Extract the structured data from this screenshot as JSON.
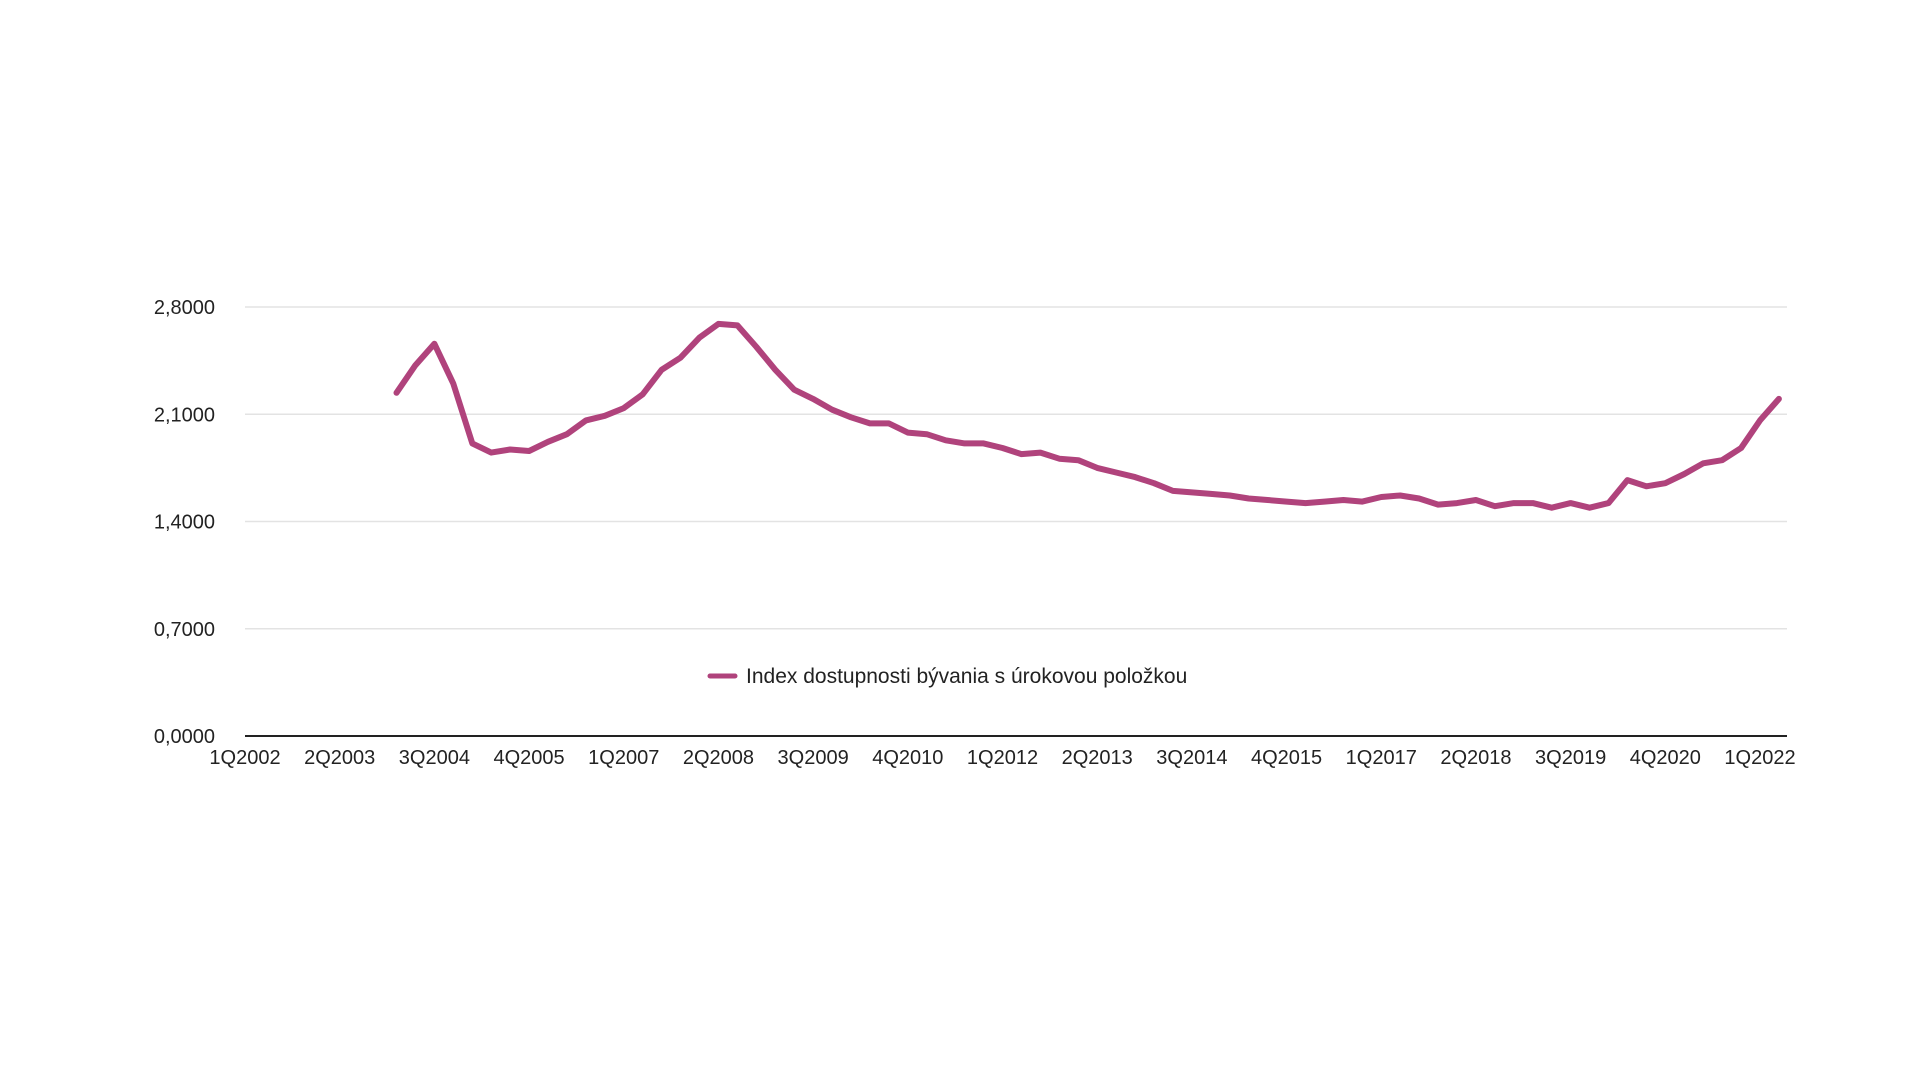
{
  "chart_data": {
    "type": "line",
    "title": "",
    "xlabel": "",
    "ylabel": "",
    "ylim": [
      0,
      2.8
    ],
    "y_ticks": [
      "0,0000",
      "0,7000",
      "1,4000",
      "2,1000",
      "2,8000"
    ],
    "y_tick_values": [
      0,
      0.7,
      1.4,
      2.1,
      2.8
    ],
    "x_tick_labels": [
      "1Q2002",
      "2Q2003",
      "3Q2004",
      "4Q2005",
      "1Q2007",
      "2Q2008",
      "3Q2009",
      "4Q2010",
      "1Q2012",
      "2Q2013",
      "3Q2014",
      "4Q2015",
      "1Q2017",
      "2Q2018",
      "3Q2019",
      "4Q2020",
      "1Q2022"
    ],
    "x_tick_positions": [
      0,
      5,
      10,
      15,
      20,
      25,
      30,
      35,
      40,
      45,
      50,
      55,
      60,
      65,
      70,
      75,
      80
    ],
    "x_count": 83,
    "grid": true,
    "legend_position": "bottom-center",
    "series": [
      {
        "name": "Index dostupnosti bývania s úrokovou položkou",
        "color": "#b0437c",
        "x_start": 8,
        "values": [
          2.24,
          2.42,
          2.56,
          2.3,
          1.91,
          1.85,
          1.87,
          1.86,
          1.92,
          1.97,
          2.06,
          2.09,
          2.14,
          2.23,
          2.39,
          2.47,
          2.6,
          2.69,
          2.68,
          2.54,
          2.39,
          2.26,
          2.2,
          2.13,
          2.08,
          2.04,
          2.04,
          1.98,
          1.97,
          1.93,
          1.91,
          1.91,
          1.88,
          1.84,
          1.85,
          1.81,
          1.8,
          1.75,
          1.72,
          1.69,
          1.65,
          1.6,
          1.59,
          1.58,
          1.57,
          1.55,
          1.54,
          1.53,
          1.52,
          1.53,
          1.54,
          1.53,
          1.56,
          1.57,
          1.55,
          1.51,
          1.52,
          1.54,
          1.5,
          1.52,
          1.52,
          1.49,
          1.52,
          1.49,
          1.52,
          1.67,
          1.63,
          1.65,
          1.71,
          1.78,
          1.8,
          1.88,
          2.06,
          2.2
        ]
      }
    ]
  }
}
